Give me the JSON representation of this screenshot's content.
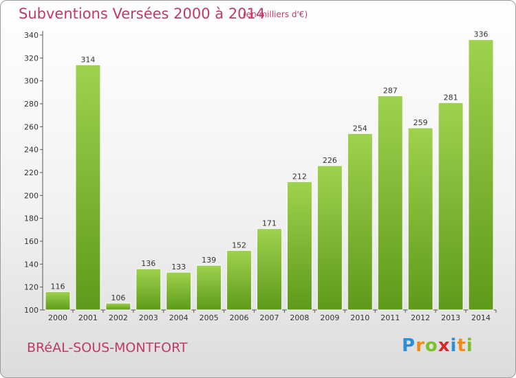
{
  "header": {
    "title": "Subventions Versées 2000 à 2014",
    "subtitle": "(en milliers d'€)"
  },
  "footer": {
    "commune": "BRéAL-SOUS-MONTFORT",
    "logo_text": "Proxiti"
  },
  "colors": {
    "title": "#c0396b",
    "bar_top": "#9fd24e",
    "bar_bottom": "#5e9a1a"
  },
  "chart_data": {
    "type": "bar",
    "title": "Subventions Versées 2000 à 2014",
    "subtitle": "(en milliers d'€)",
    "xlabel": "",
    "ylabel": "",
    "categories": [
      "2000",
      "2001",
      "2002",
      "2003",
      "2004",
      "2005",
      "2006",
      "2007",
      "2008",
      "2009",
      "2010",
      "2011",
      "2012",
      "2013",
      "2014"
    ],
    "values": [
      116,
      314,
      106,
      136,
      133,
      139,
      152,
      171,
      212,
      226,
      254,
      287,
      259,
      281,
      336
    ],
    "ylim": [
      100,
      340
    ],
    "yticks": [
      100,
      120,
      140,
      160,
      180,
      200,
      220,
      240,
      260,
      280,
      300,
      320,
      340
    ],
    "grid": false,
    "data_labels": true
  }
}
